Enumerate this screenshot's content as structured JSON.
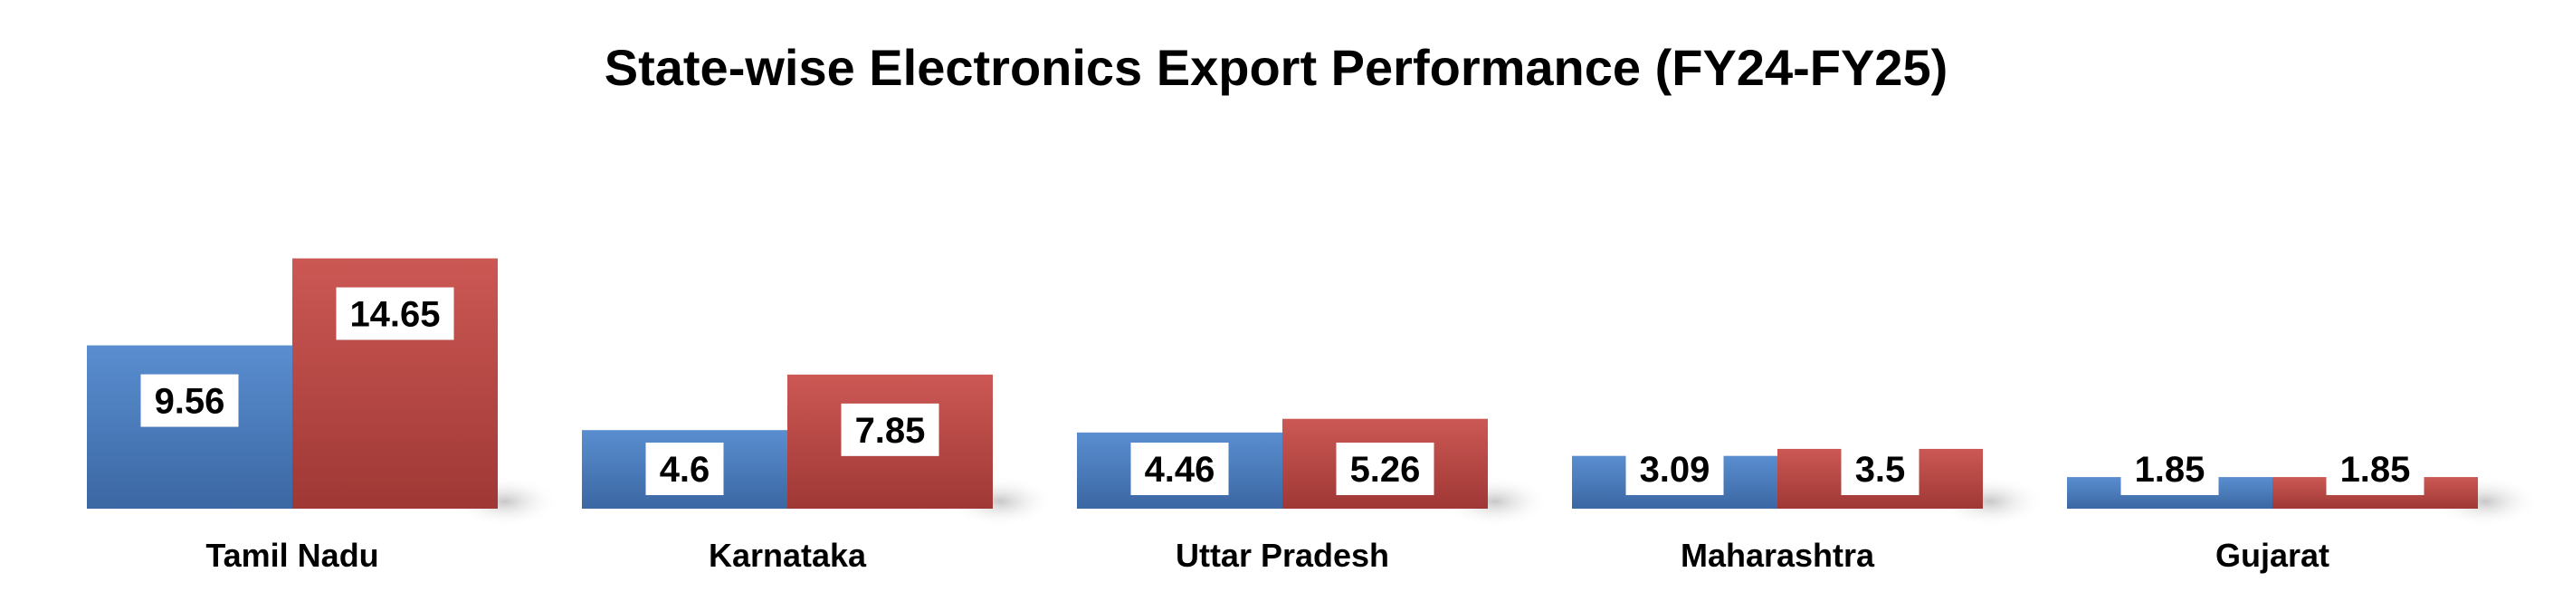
{
  "chart_data": {
    "type": "bar",
    "title": "State-wise Electronics Export Performance (FY24-FY25)",
    "categories": [
      "Tamil Nadu",
      "Karnataka",
      "Uttar Pradesh",
      "Maharashtra",
      "Gujarat"
    ],
    "series": [
      {
        "values": [
          9.56,
          4.6,
          4.46,
          3.09,
          1.85
        ],
        "color": "#4f81bd",
        "label_text": [
          "9.56",
          "4.6",
          "4.46",
          "3.09",
          "1.85"
        ]
      },
      {
        "values": [
          14.65,
          7.85,
          5.26,
          3.5,
          1.85
        ],
        "color": "#c0504d",
        "label_text": [
          "14.65",
          "7.85",
          "5.26",
          "3.5",
          "1.85"
        ]
      }
    ],
    "ylim": [
      0,
      15.1
    ],
    "grid": false,
    "legend": "none",
    "xlabel": "",
    "ylabel": ""
  }
}
